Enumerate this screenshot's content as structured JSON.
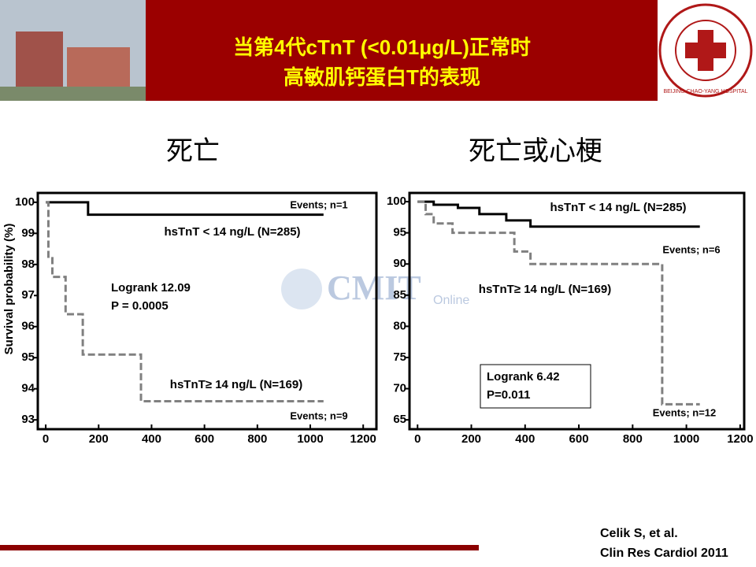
{
  "header": {
    "title_lines": [
      "当第4代cTnT (<0.01μg/L)正常时",
      "高敏肌钙蛋白T的表现"
    ],
    "logo": "BEIJING CHAO-YANG HOSPITAL",
    "watermark": [
      "CMIT",
      "Online"
    ]
  },
  "citation": [
    "Celik S, et al.",
    "Clin Res Cardiol 2011"
  ],
  "chart_data": [
    {
      "type": "line",
      "title": "死亡",
      "ylabel": "Survival probability (%)",
      "xlim": [
        -30,
        1250
      ],
      "ylim": [
        92.7,
        100.3
      ],
      "xticks": [
        0,
        200,
        400,
        600,
        800,
        1000,
        1200
      ],
      "yticks": [
        93,
        94,
        95,
        96,
        97,
        98,
        99,
        100
      ],
      "series": [
        {
          "name": "hsTnT < 14 ng/L (N=285)",
          "color": "#000000",
          "dashed": false,
          "x": [
            0,
            160,
            1050
          ],
          "values": [
            100,
            99.6,
            99.6
          ]
        },
        {
          "name": "hsTnT≥ 14 ng/L (N=169)",
          "color": "#808080",
          "dashed": true,
          "x": [
            0,
            10,
            25,
            75,
            140,
            360,
            1050
          ],
          "values": [
            100,
            98.2,
            97.6,
            96.4,
            95.1,
            93.6,
            93.6
          ]
        }
      ],
      "annotations": [
        "Events; n=1",
        "Events; n=9"
      ],
      "stat_box": [
        "Logrank 12.09",
        "P = 0.0005"
      ]
    },
    {
      "type": "line",
      "title": "死亡或心梗",
      "xlim": [
        -30,
        1215
      ],
      "ylim": [
        63.5,
        101.4
      ],
      "xticks": [
        0,
        200,
        400,
        600,
        800,
        1000,
        1200
      ],
      "yticks": [
        65,
        70,
        75,
        80,
        85,
        90,
        95,
        100
      ],
      "series": [
        {
          "name": "hsTnT < 14 ng/L (N=285)",
          "color": "#000000",
          "dashed": false,
          "x": [
            0,
            60,
            150,
            230,
            330,
            420,
            1050
          ],
          "values": [
            100,
            99.5,
            99,
            98,
            97,
            96,
            96
          ]
        },
        {
          "name": "hsTnT≥ 14 ng/L (N=169)",
          "color": "#808080",
          "dashed": true,
          "x": [
            0,
            30,
            60,
            130,
            360,
            420,
            910,
            1050
          ],
          "values": [
            100,
            98,
            96.5,
            95,
            92,
            90,
            67.5,
            67.5
          ]
        }
      ],
      "annotations": [
        "Events; n=6",
        "Events; n=12"
      ],
      "stat_box": [
        "Logrank 6.42",
        "P=0.011"
      ]
    }
  ]
}
